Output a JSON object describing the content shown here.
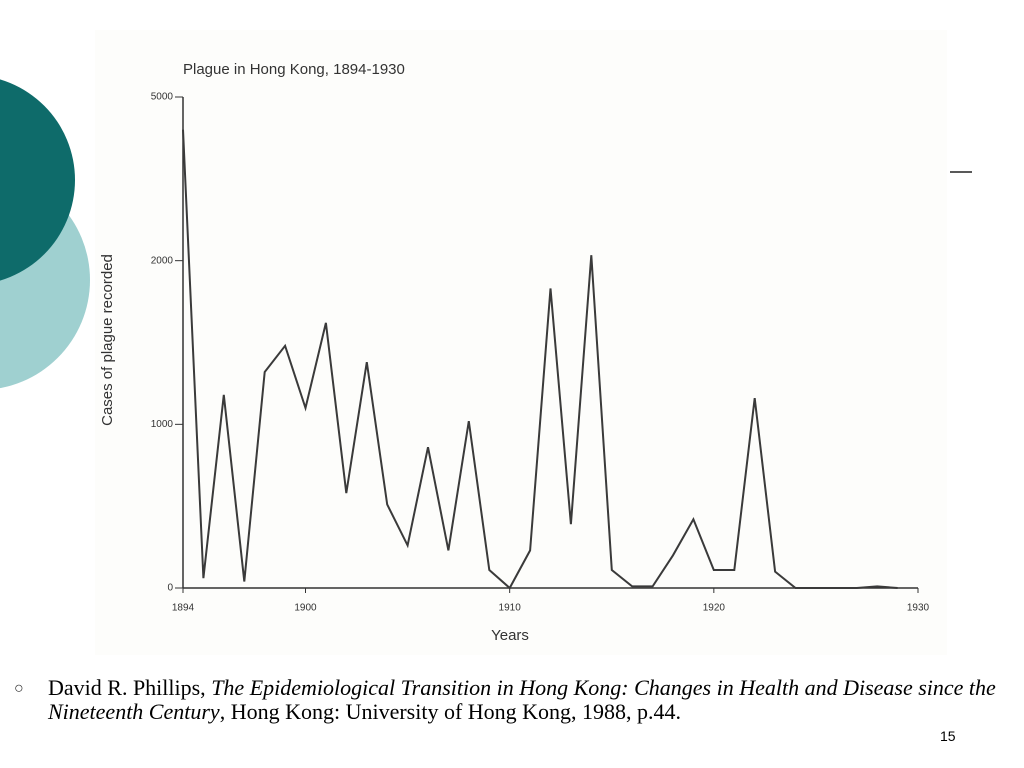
{
  "chart_data": {
    "type": "line",
    "title": "Plague in Hong Kong, 1894-1930",
    "x_label": "Years",
    "y_label": "Cases of plague recorded",
    "x": [
      1894,
      1895,
      1896,
      1897,
      1898,
      1899,
      1900,
      1901,
      1902,
      1903,
      1904,
      1905,
      1906,
      1907,
      1908,
      1909,
      1910,
      1911,
      1912,
      1913,
      1914,
      1915,
      1916,
      1917,
      1918,
      1919,
      1920,
      1921,
      1922,
      1923,
      1924,
      1925,
      1926,
      1927,
      1928,
      1929
    ],
    "values": [
      4400,
      60,
      1180,
      40,
      1320,
      1480,
      1100,
      1620,
      580,
      1380,
      510,
      260,
      860,
      230,
      1020,
      110,
      0,
      230,
      1830,
      390,
      2100,
      110,
      10,
      10,
      200,
      420,
      110,
      110,
      1160,
      100,
      0,
      0,
      0,
      0,
      10,
      0
    ],
    "color": "#3a3a3a",
    "xlim": [
      1894,
      1930
    ],
    "xticks": [
      1894,
      1900,
      1910,
      1920,
      1930
    ],
    "ylim": [
      0,
      5000
    ],
    "yticks": [
      0,
      1000,
      2000,
      5000
    ]
  },
  "citation": {
    "author": "David R. Phillips, ",
    "title": "The Epidemiological Transition in Hong Kong: Changes in Health and Disease since the Nineteenth Century",
    "rest": ", Hong Kong: University of Hong Kong, 1988, p.44."
  },
  "page_number": "15"
}
